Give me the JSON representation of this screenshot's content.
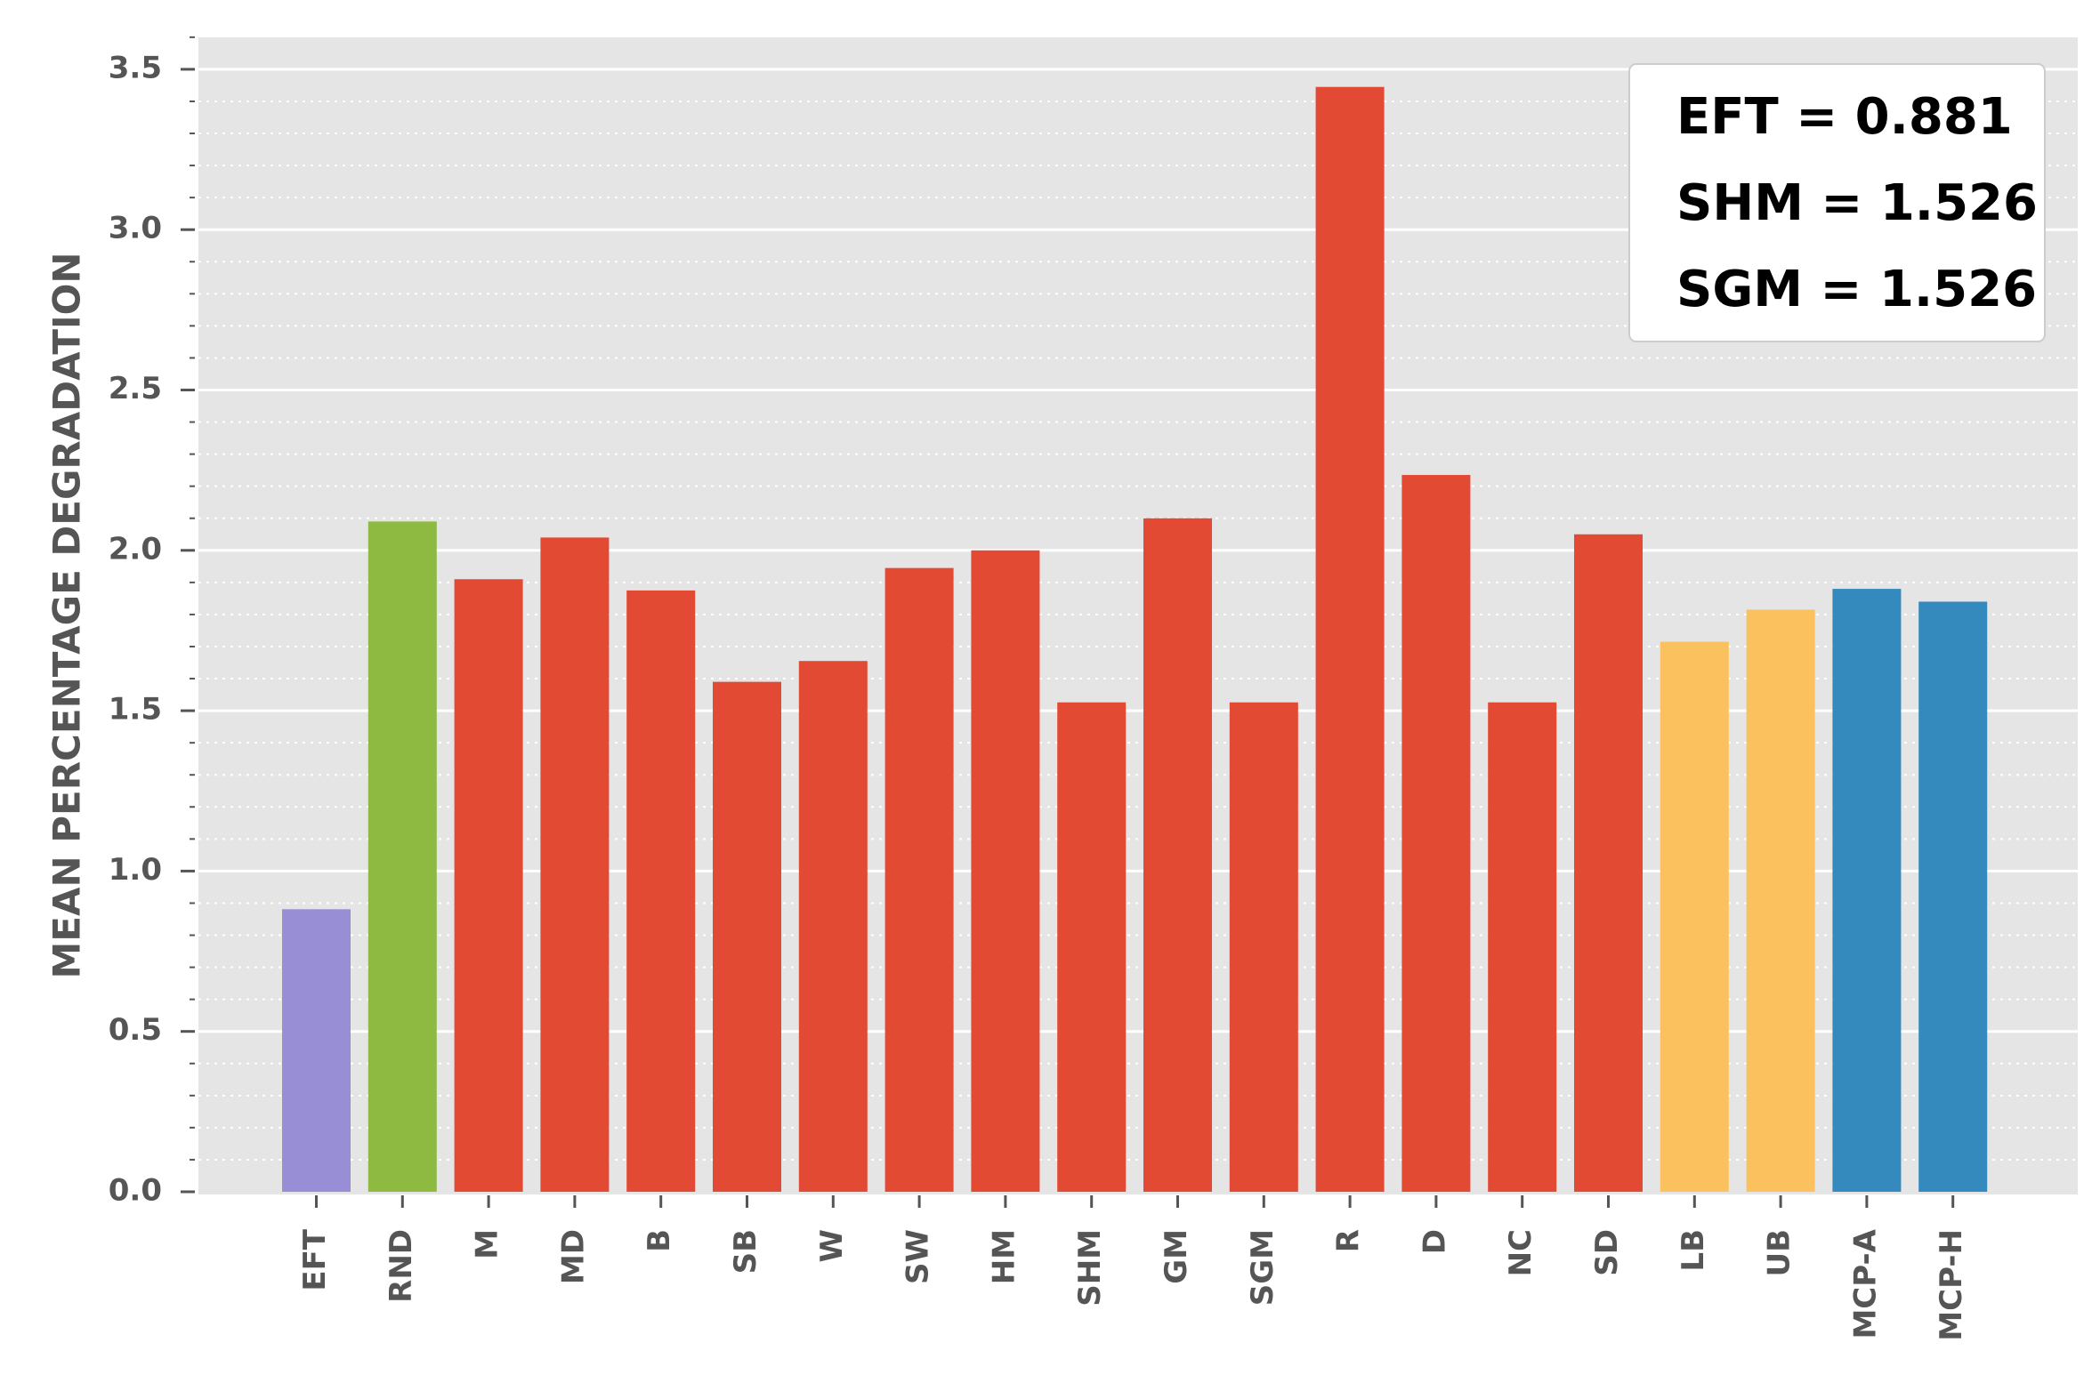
{
  "chart_data": {
    "type": "bar",
    "title": "",
    "xlabel": "",
    "ylabel": "MEAN PERCENTAGE DEGRADATION",
    "ylim": [
      0,
      3.6
    ],
    "yticks": [
      "0.0",
      "0.5",
      "1.0",
      "1.5",
      "2.0",
      "2.5",
      "3.0",
      "3.5"
    ],
    "grid": true,
    "categories": [
      "EFT",
      "RND",
      "M",
      "MD",
      "B",
      "SB",
      "W",
      "SW",
      "HM",
      "SHM",
      "GM",
      "SGM",
      "R",
      "D",
      "NC",
      "SD",
      "LB",
      "UB",
      "MCP-A",
      "MCP-H"
    ],
    "values": [
      0.881,
      2.09,
      1.91,
      2.04,
      1.875,
      1.59,
      1.655,
      1.945,
      2.0,
      1.526,
      2.1,
      1.526,
      3.445,
      2.235,
      1.526,
      2.05,
      1.715,
      1.815,
      1.88,
      1.84
    ],
    "bar_colors": [
      "#988ed5",
      "#8eba42",
      "#e24a33",
      "#e24a33",
      "#e24a33",
      "#e24a33",
      "#e24a33",
      "#e24a33",
      "#e24a33",
      "#e24a33",
      "#e24a33",
      "#e24a33",
      "#e24a33",
      "#e24a33",
      "#e24a33",
      "#e24a33",
      "#fbc15e",
      "#fbc15e",
      "#348abd",
      "#348abd"
    ],
    "annotation": {
      "placement": "top-right",
      "lines": [
        "EFT = 0.881",
        "SHM = 1.526",
        "SGM = 1.526"
      ]
    },
    "colors": {
      "plot_background": "#e5e5e5",
      "grid": "#ffffff",
      "text": "#555555"
    }
  }
}
